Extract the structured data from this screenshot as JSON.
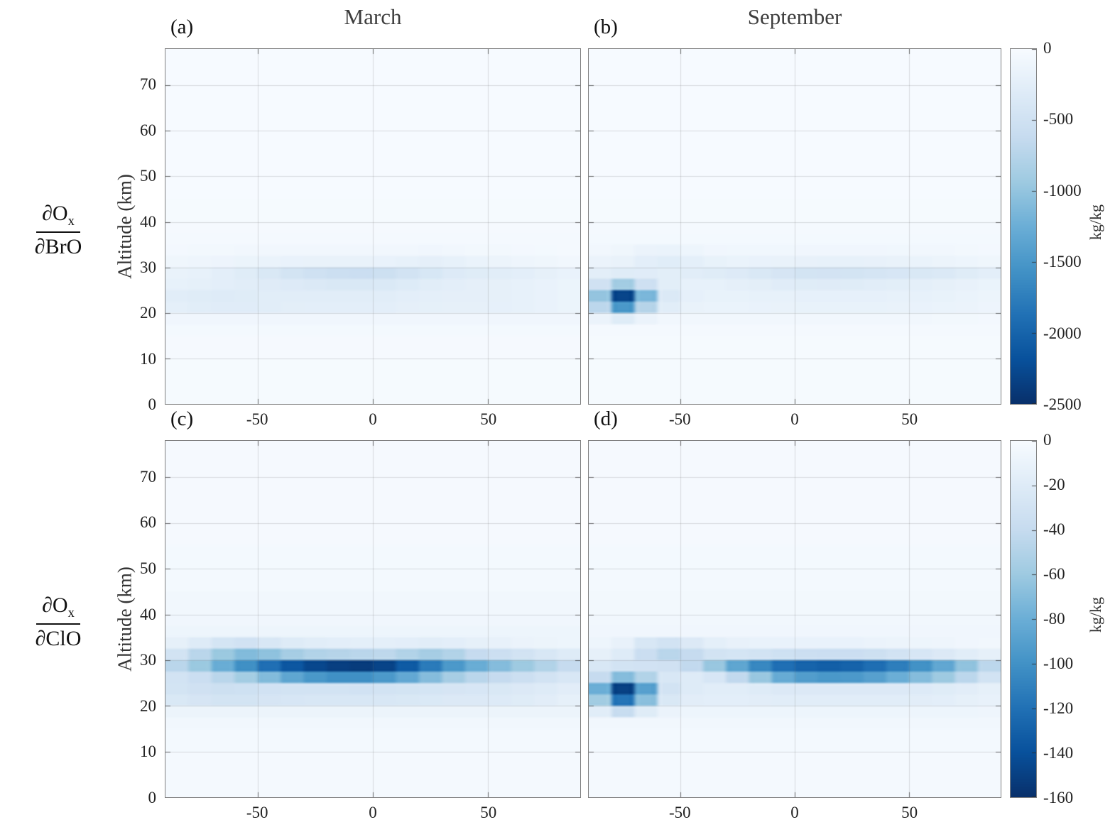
{
  "row_labels": [
    {
      "num_main": "∂O",
      "num_sub": "x",
      "den": "∂BrO"
    },
    {
      "num_main": "∂O",
      "num_sub": "x",
      "den": "∂ClO"
    }
  ],
  "chart_data": {
    "type": "heatmap",
    "x": {
      "label": "",
      "range": [
        -90,
        90
      ],
      "ticks": [
        -50,
        0,
        50
      ]
    },
    "y": {
      "label": "Altitude (km)",
      "range": [
        0,
        78
      ],
      "ticks": [
        0,
        10,
        20,
        30,
        40,
        50,
        60,
        70
      ]
    },
    "grid": true,
    "colormap": [
      "#f7fbff",
      "#deebf7",
      "#c6dbef",
      "#9ecae1",
      "#6baed6",
      "#4292c6",
      "#2171b5",
      "#08519c",
      "#08306b"
    ],
    "lat_edges": [
      -90,
      -80,
      -70,
      -60,
      -50,
      -40,
      -30,
      -20,
      -10,
      0,
      10,
      20,
      30,
      40,
      50,
      60,
      70,
      80,
      90
    ],
    "alt_edges": [
      0,
      10,
      15,
      17.5,
      20,
      22.5,
      25,
      27.5,
      30,
      32.5,
      35,
      37.5,
      40,
      45,
      55,
      78
    ],
    "panels": [
      {
        "id": "a",
        "label": "(a)",
        "title": "March",
        "group": "dOx/dBrO",
        "vmax": 2500,
        "values": [
          -25,
          -30,
          -45,
          -90,
          [
            -240,
            -270,
            -290,
            -290,
            -270,
            -255,
            -245,
            -245,
            -245,
            -245,
            -230,
            -220,
            -215,
            -215,
            -210,
            -195,
            -175,
            -145
          ],
          [
            -270,
            -295,
            -315,
            -300,
            -280,
            -270,
            -270,
            -280,
            -280,
            -270,
            -250,
            -240,
            -230,
            -225,
            -215,
            -195,
            -175,
            -145
          ],
          [
            -200,
            -220,
            -250,
            -280,
            -305,
            -325,
            -350,
            -375,
            -380,
            -360,
            -320,
            -280,
            -250,
            -230,
            -215,
            -195,
            -175,
            -145
          ],
          [
            -180,
            -200,
            -250,
            -300,
            -380,
            -450,
            -505,
            -550,
            -560,
            -535,
            -475,
            -400,
            -330,
            -300,
            -275,
            -245,
            -215,
            -175
          ],
          [
            -100,
            -115,
            -130,
            -145,
            -160,
            -170,
            -180,
            -180,
            -178,
            -172,
            -195,
            -225,
            -200,
            -160,
            -140,
            -118,
            -98,
            -78
          ],
          [
            -55,
            -60,
            -65,
            -70,
            -72,
            -74,
            -76,
            -76,
            -74,
            -72,
            -80,
            -90,
            -80,
            -68,
            -60,
            -52,
            -45,
            -38
          ],
          -40,
          -30,
          -25,
          -18,
          -12
        ]
      },
      {
        "id": "b",
        "label": "(b)",
        "title": "September",
        "group": "dOx/dBrO",
        "vmax": 2500,
        "values": [
          -22,
          -26,
          -40,
          [
            -150,
            -300,
            -150,
            -80,
            -70,
            -70,
            -70,
            -72,
            -75,
            -75,
            -75,
            -75,
            -75,
            -75,
            -72,
            -68,
            -62,
            -55
          ],
          [
            -700,
            -1500,
            -750,
            -280,
            -180,
            -160,
            -160,
            -170,
            -180,
            -182,
            -184,
            -184,
            -182,
            -180,
            -175,
            -165,
            -150,
            -130
          ],
          [
            -1000,
            -2300,
            -1150,
            -350,
            -210,
            -185,
            -185,
            -195,
            -205,
            -208,
            -210,
            -210,
            -208,
            -205,
            -198,
            -185,
            -165,
            -142
          ],
          [
            -500,
            -900,
            -520,
            -260,
            -200,
            -200,
            -225,
            -255,
            -285,
            -300,
            -305,
            -298,
            -280,
            -258,
            -238,
            -215,
            -192,
            -162
          ],
          [
            -255,
            -300,
            -285,
            -262,
            -280,
            -302,
            -332,
            -380,
            -420,
            -450,
            -462,
            -452,
            -432,
            -402,
            -380,
            -350,
            -302,
            -252
          ],
          [
            -150,
            -180,
            -250,
            -282,
            -232,
            -182,
            -162,
            -170,
            -180,
            -190,
            -200,
            -200,
            -190,
            -180,
            -160,
            -140,
            -120,
            -100
          ],
          [
            -80,
            -100,
            -150,
            -162,
            -122,
            -92,
            -82,
            -82,
            -82,
            -90,
            -92,
            -92,
            -90,
            -82,
            -80,
            -70,
            -60,
            -50
          ],
          -48,
          -34,
          -26,
          -18,
          -12
        ]
      },
      {
        "id": "c",
        "label": "(c)",
        "title": "",
        "group": "dOx/dClO",
        "vmax": 160,
        "values": [
          -2.5,
          -3,
          -5,
          -9,
          [
            -24,
            -27,
            -29,
            -29,
            -27,
            -26,
            -25,
            -25,
            -25,
            -25,
            -24,
            -23,
            -22,
            -22,
            -21,
            -19,
            -17,
            -14
          ],
          [
            -29,
            -32,
            -34,
            -33,
            -31,
            -30,
            -30,
            -30,
            -31,
            -30,
            -29,
            -28,
            -27,
            -26,
            -24,
            -22,
            -20,
            -17
          ],
          [
            -30,
            -36,
            -46,
            -57,
            -71,
            -86,
            -96,
            -101,
            -101,
            -95,
            -84,
            -70,
            -56,
            -46,
            -40,
            -35,
            -30,
            -25
          ],
          [
            -46,
            -61,
            -81,
            -101,
            -121,
            -136,
            -146,
            -151,
            -153,
            -148,
            -134,
            -114,
            -95,
            -81,
            -70,
            -60,
            -50,
            -40
          ],
          [
            -30,
            -46,
            -61,
            -71,
            -66,
            -56,
            -50,
            -48,
            -46,
            -44,
            -50,
            -56,
            -50,
            -40,
            -35,
            -30,
            -25,
            -20
          ],
          [
            -14,
            -20,
            -28,
            -31,
            -25,
            -20,
            -18,
            -16,
            -15,
            -15,
            -16,
            -18,
            -16,
            -14,
            -12,
            -10,
            -9,
            -8
          ],
          -8,
          -6,
          -4.5,
          -3,
          -2
        ]
      },
      {
        "id": "d",
        "label": "(d)",
        "title": "",
        "group": "dOx/dClO",
        "vmax": 160,
        "values": [
          -2.5,
          -3,
          -5,
          [
            -18,
            -38,
            -19,
            -10,
            -8,
            -8,
            -8,
            -8,
            -8,
            -8,
            -8,
            -8,
            -8,
            -8,
            -8,
            -8,
            -8,
            -7
          ],
          [
            -58,
            -118,
            -68,
            -24,
            -17,
            -16,
            -16,
            -17,
            -18,
            -18,
            -18,
            -18,
            -18,
            -18,
            -17,
            -16,
            -14,
            -12
          ],
          [
            -80,
            -150,
            -90,
            -30,
            -20,
            -18,
            -18,
            -20,
            -22,
            -22,
            -22,
            -22,
            -22,
            -22,
            -21,
            -19,
            -17,
            -14
          ],
          [
            -40,
            -70,
            -50,
            -25,
            -20,
            -26,
            -42,
            -62,
            -82,
            -92,
            -96,
            -95,
            -90,
            -80,
            -70,
            -60,
            -45,
            -30
          ],
          [
            -25,
            -30,
            -31,
            -32,
            -42,
            -62,
            -86,
            -106,
            -121,
            -128,
            -131,
            -129,
            -122,
            -112,
            -100,
            -85,
            -65,
            -45
          ],
          [
            -14,
            -20,
            -36,
            -46,
            -40,
            -30,
            -28,
            -30,
            -33,
            -35,
            -36,
            -36,
            -34,
            -30,
            -26,
            -22,
            -18,
            -14
          ],
          [
            -8,
            -12,
            -25,
            -30,
            -22,
            -15,
            -12,
            -11,
            -11,
            -11,
            -11,
            -11,
            -10,
            -9,
            -8,
            -7,
            -6,
            -5
          ],
          -6,
          -5,
          -4,
          -3,
          -2
        ]
      }
    ],
    "colorbars": [
      {
        "position": "top",
        "vmax": 2500,
        "ticks": [
          0,
          -500,
          -1000,
          -1500,
          -2000,
          -2500
        ],
        "unit": "kg/kg"
      },
      {
        "position": "bottom",
        "vmax": 160,
        "ticks": [
          0,
          -20,
          -40,
          -60,
          -80,
          -100,
          -120,
          -140,
          -160
        ],
        "unit": "kg/kg"
      }
    ]
  }
}
